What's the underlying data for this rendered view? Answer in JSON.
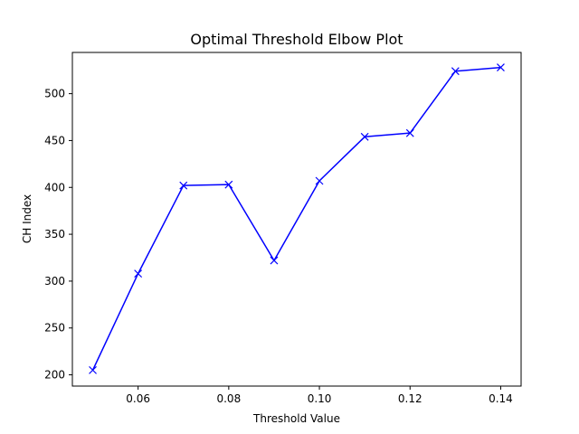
{
  "chart_data": {
    "type": "line",
    "title": "Optimal Threshold Elbow Plot",
    "xlabel": "Threshold Value",
    "ylabel": "CH Index",
    "xlim": [
      0.0455,
      0.1445
    ],
    "ylim": [
      188,
      544
    ],
    "xticks": [
      0.06,
      0.08,
      0.1,
      0.12,
      0.14
    ],
    "xtick_labels": [
      "0.06",
      "0.08",
      "0.10",
      "0.12",
      "0.14"
    ],
    "yticks": [
      200,
      250,
      300,
      350,
      400,
      450,
      500
    ],
    "ytick_labels": [
      "200",
      "250",
      "300",
      "350",
      "400",
      "450",
      "500"
    ],
    "grid": false,
    "series": [
      {
        "marker": "x",
        "color": "#0000ff",
        "x": [
          0.05,
          0.06,
          0.07,
          0.08,
          0.09,
          0.1,
          0.11,
          0.12,
          0.13,
          0.14
        ],
        "y": [
          205,
          308,
          402,
          403,
          322,
          407,
          454,
          458,
          524,
          528
        ]
      }
    ]
  }
}
